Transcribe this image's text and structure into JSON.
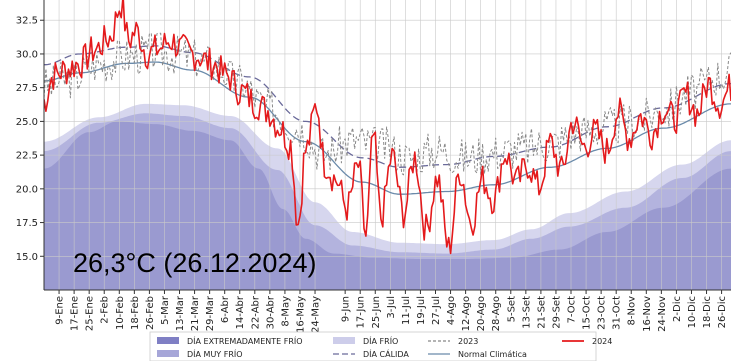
{
  "chart_data": {
    "type": "area",
    "title": "",
    "xlabel": "",
    "ylabel": "",
    "ylim": [
      12.5,
      34.0
    ],
    "xlim": [
      1,
      366
    ],
    "yticks": [
      15.0,
      17.5,
      20.0,
      22.5,
      25.0,
      27.5,
      30.0,
      32.5
    ],
    "ytick_labels": [
      "15.0",
      "17.5",
      "20.0",
      "22.5",
      "25.0",
      "27.5",
      "30.0",
      "32.5"
    ],
    "xticks": [
      {
        "day": 9,
        "label": "9-Ene"
      },
      {
        "day": 17,
        "label": "17-Ene"
      },
      {
        "day": 25,
        "label": "25-Ene"
      },
      {
        "day": 33,
        "label": "2-Feb"
      },
      {
        "day": 41,
        "label": "10-Feb"
      },
      {
        "day": 49,
        "label": "18-Feb"
      },
      {
        "day": 57,
        "label": "26-Feb"
      },
      {
        "day": 65,
        "label": "5-Mar"
      },
      {
        "day": 73,
        "label": "13-Mar"
      },
      {
        "day": 81,
        "label": "21-Mar"
      },
      {
        "day": 89,
        "label": "29-Mar"
      },
      {
        "day": 97,
        "label": "6-Abr"
      },
      {
        "day": 105,
        "label": "14-Abr"
      },
      {
        "day": 113,
        "label": "22-Abr"
      },
      {
        "day": 121,
        "label": "30-Abr"
      },
      {
        "day": 129,
        "label": "8-May"
      },
      {
        "day": 137,
        "label": "16-May"
      },
      {
        "day": 145,
        "label": "24-May"
      },
      {
        "day": 161,
        "label": "9-Jun"
      },
      {
        "day": 169,
        "label": "17-Jun"
      },
      {
        "day": 177,
        "label": "25-Jun"
      },
      {
        "day": 185,
        "label": "3-Jul"
      },
      {
        "day": 193,
        "label": "11-Jul"
      },
      {
        "day": 201,
        "label": "19-Jul"
      },
      {
        "day": 209,
        "label": "27-Jul"
      },
      {
        "day": 217,
        "label": "4-Ago"
      },
      {
        "day": 225,
        "label": "12-Ago"
      },
      {
        "day": 233,
        "label": "20-Ago"
      },
      {
        "day": 241,
        "label": "28-Ago"
      },
      {
        "day": 249,
        "label": "5-Set"
      },
      {
        "day": 257,
        "label": "13-Set"
      },
      {
        "day": 265,
        "label": "21-Set"
      },
      {
        "day": 273,
        "label": "29-Set"
      },
      {
        "day": 281,
        "label": "7-Oct"
      },
      {
        "day": 289,
        "label": "15-Oct"
      },
      {
        "day": 297,
        "label": "23-Oct"
      },
      {
        "day": 305,
        "label": "31-Oct"
      },
      {
        "day": 313,
        "label": "8-Nov"
      },
      {
        "day": 321,
        "label": "16-Nov"
      },
      {
        "day": 329,
        "label": "24-Nov"
      },
      {
        "day": 337,
        "label": "2-Dic"
      },
      {
        "day": 345,
        "label": "10-Dic"
      },
      {
        "day": 353,
        "label": "18-Dic"
      },
      {
        "day": 361,
        "label": "26-Dic"
      }
    ],
    "grid": true,
    "legend_position": "bottom",
    "bands": {
      "normal": {
        "days": [
          1,
          20,
          45,
          60,
          80,
          110,
          140,
          170,
          190,
          215,
          240,
          270,
          300,
          330,
          366
        ],
        "values": [
          28.0,
          28.6,
          29.3,
          29.4,
          28.8,
          26.8,
          23.5,
          20.5,
          19.6,
          19.8,
          20.3,
          21.6,
          23.0,
          24.5,
          26.3
        ]
      },
      "calida": {
        "days": [
          1,
          20,
          45,
          60,
          80,
          110,
          140,
          170,
          190,
          215,
          240,
          270,
          300,
          330,
          366
        ],
        "values": [
          29.2,
          30.0,
          30.5,
          30.6,
          30.1,
          28.3,
          25.0,
          22.3,
          21.6,
          21.8,
          22.4,
          23.1,
          24.6,
          26.0,
          27.8
        ]
      },
      "frio": {
        "days": [
          1,
          30,
          55,
          75,
          100,
          125,
          145,
          165,
          190,
          215,
          240,
          260,
          280,
          310,
          340,
          366
        ],
        "values": [
          23.5,
          25.3,
          26.3,
          26.2,
          25.4,
          23.0,
          19.0,
          16.8,
          16.0,
          15.9,
          16.2,
          17.0,
          18.2,
          19.8,
          21.8,
          23.6
        ]
      },
      "muyfrio": {
        "days": [
          1,
          30,
          55,
          75,
          100,
          125,
          145,
          165,
          190,
          215,
          240,
          260,
          280,
          310,
          340,
          366
        ],
        "values": [
          22.8,
          24.9,
          25.6,
          25.4,
          24.5,
          21.4,
          17.3,
          15.8,
          15.3,
          15.2,
          15.5,
          16.3,
          17.2,
          18.6,
          20.8,
          22.8
        ]
      },
      "extremo": {
        "days": [
          1,
          25,
          40,
          60,
          80,
          100,
          115,
          128,
          140,
          155,
          175,
          200,
          225,
          250,
          275,
          300,
          330,
          366
        ],
        "values": [
          21.5,
          24.2,
          25.0,
          24.8,
          24.3,
          23.6,
          21.5,
          18.5,
          16.3,
          15.2,
          14.9,
          14.8,
          14.8,
          14.9,
          15.5,
          16.8,
          18.6,
          21.5
        ]
      }
    },
    "series": [
      {
        "name": "2024",
        "color": "#e41a1c",
        "anchors": {
          "days": [
            1,
            6,
            12,
            20,
            28,
            36,
            42,
            46,
            50,
            56,
            62,
            68,
            75,
            82,
            90,
            98,
            106,
            114,
            120,
            126,
            132,
            136,
            140,
            146,
            150,
            156,
            162,
            168,
            172,
            176,
            180,
            186,
            192,
            198,
            204,
            210,
            216,
            222,
            228,
            234,
            240,
            246,
            252,
            258,
            264,
            270,
            276,
            282,
            288,
            294,
            300,
            306,
            312,
            318,
            324,
            330,
            336,
            342,
            348,
            354,
            360,
            366
          ],
          "values": [
            26.5,
            28.4,
            28.8,
            29.3,
            30.3,
            31.2,
            33.7,
            31.0,
            31.7,
            30.0,
            30.4,
            31.0,
            30.3,
            29.9,
            29.3,
            28.4,
            27.2,
            26.3,
            25.8,
            24.6,
            23.3,
            17.4,
            22.8,
            26.2,
            21.9,
            20.7,
            18.6,
            21.7,
            16.5,
            23.9,
            17.9,
            22.4,
            18.2,
            22.3,
            17.0,
            20.8,
            15.6,
            21.3,
            17.5,
            20.7,
            19.2,
            22.6,
            20.5,
            21.8,
            20.1,
            23.4,
            21.3,
            25.0,
            23.1,
            24.2,
            22.8,
            25.7,
            23.8,
            25.4,
            24.1,
            25.9,
            25.2,
            27.0,
            25.6,
            27.8,
            26.3,
            27.5
          ]
        },
        "jitter": 1.2,
        "seed": 7
      },
      {
        "name": "2023",
        "color": "#888888",
        "dash": "3,2",
        "anchors": {
          "days": [
            1,
            15,
            30,
            45,
            60,
            75,
            90,
            105,
            120,
            135,
            150,
            165,
            180,
            195,
            210,
            225,
            240,
            255,
            270,
            285,
            300,
            315,
            330,
            345,
            360,
            366
          ],
          "values": [
            27.6,
            28.2,
            29.3,
            29.8,
            30.2,
            29.9,
            29.3,
            27.9,
            26.0,
            24.6,
            22.6,
            23.6,
            23.2,
            22.3,
            22.9,
            22.3,
            22.7,
            23.0,
            23.4,
            24.2,
            24.6,
            25.0,
            25.8,
            27.2,
            28.4,
            28.9
          ]
        },
        "jitter": 1.5,
        "seed": 3
      }
    ],
    "annotation": "26,3°C (26.12.2024)",
    "legend": [
      {
        "label": "DÍA EXTREMADAMENTE FRÍO",
        "kind": "patch",
        "color": "#7f7fc4"
      },
      {
        "label": "DÍA MUY FRÍO",
        "kind": "patch",
        "color": "#a6a6d8"
      },
      {
        "label": "DÍA FRÍO",
        "kind": "patch",
        "color": "#cdcdea"
      },
      {
        "label": "DÍA CÁLIDA",
        "kind": "dash",
        "color": "#6a6a9a"
      },
      {
        "label": "2023",
        "kind": "dash",
        "color": "#888888"
      },
      {
        "label": "Normal Climática",
        "kind": "line",
        "color": "#6a8aaa"
      },
      {
        "label": "2024",
        "kind": "line",
        "color": "#e41a1c"
      }
    ]
  }
}
